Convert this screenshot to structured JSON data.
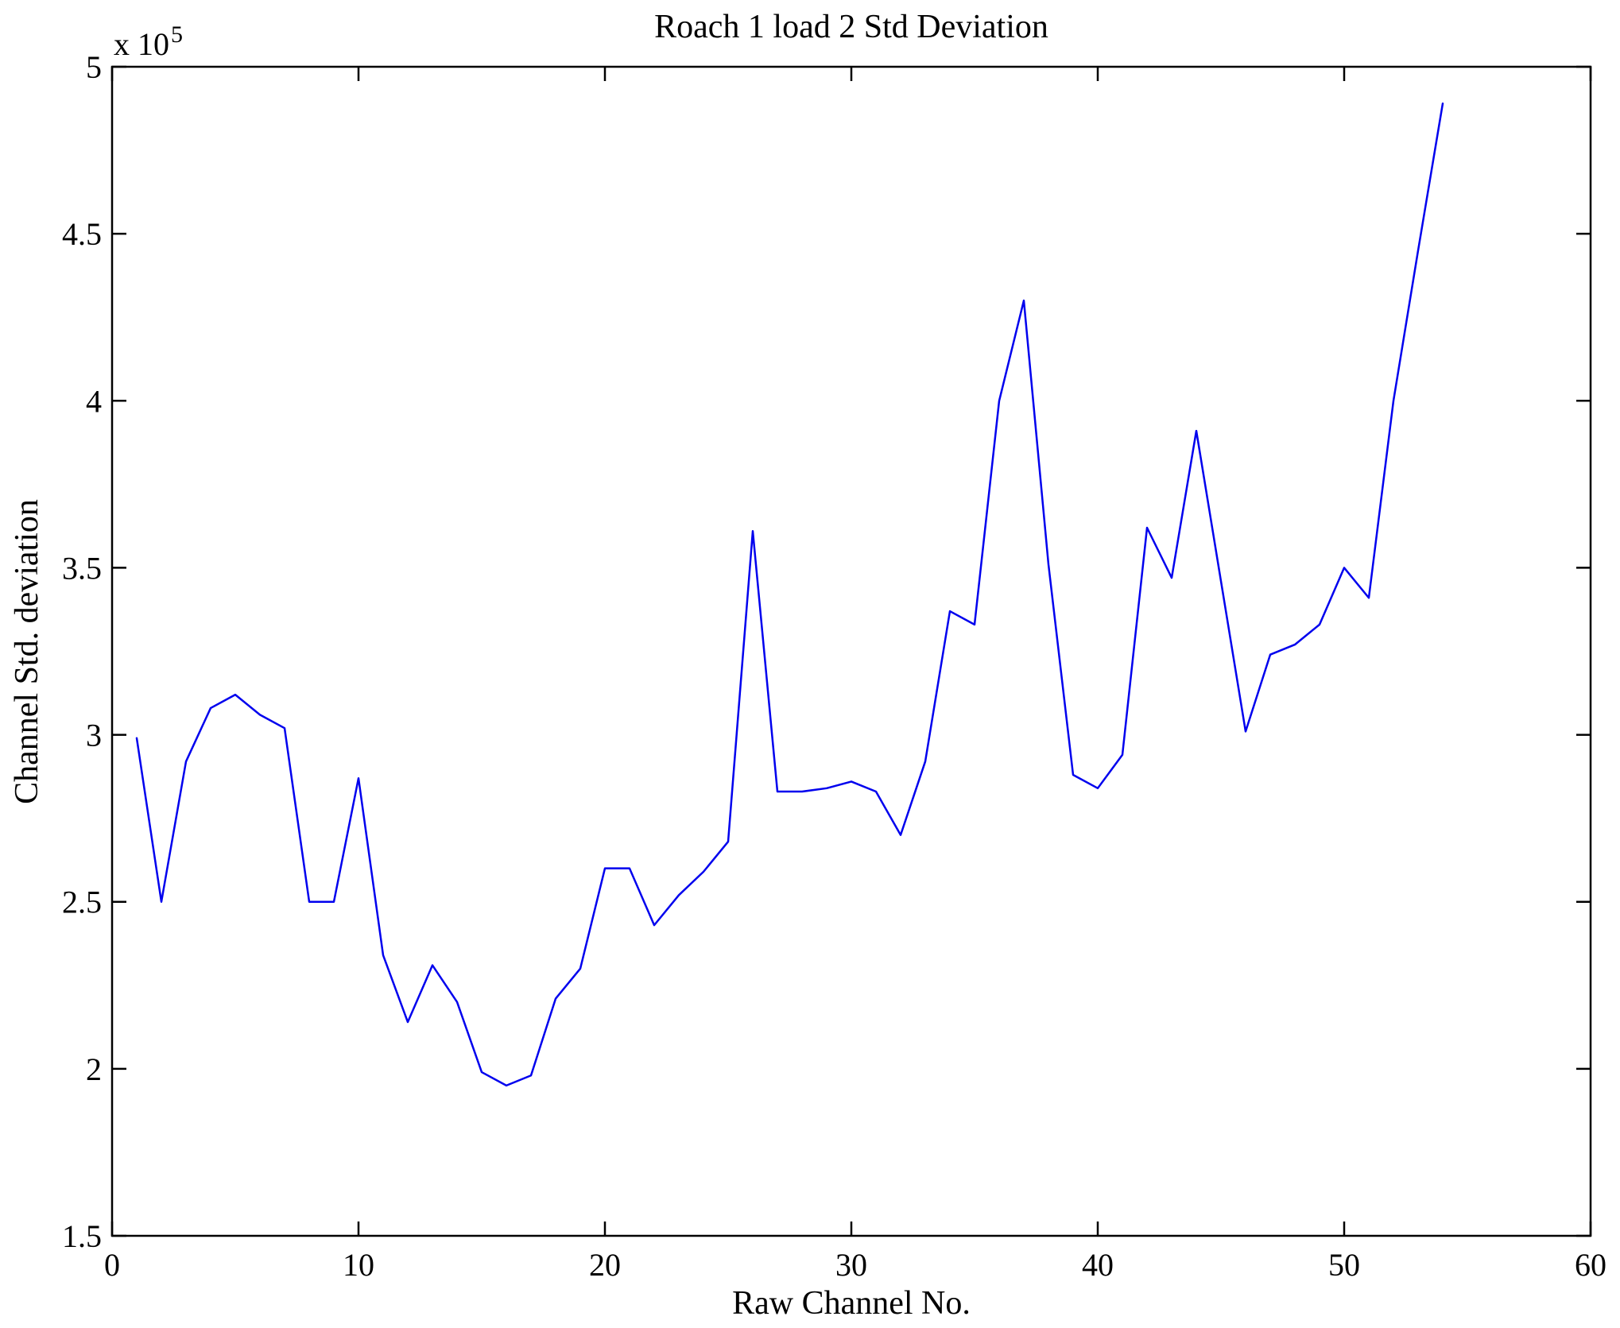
{
  "chart": {
    "title": "Roach 1 load 2 Std Deviation",
    "xlabel": "Raw Channel No.",
    "ylabel": "Channel Std. deviation",
    "y_multiplier_base": "x 10",
    "y_multiplier_exp": "5",
    "line_color": "#0000ee",
    "axis_color": "#000000",
    "background_color": "#ffffff"
  },
  "chart_data": {
    "type": "line",
    "title": "Roach 1 load 2 Std Deviation",
    "xlabel": "Raw Channel No.",
    "ylabel": "Channel Std. deviation",
    "y_unit_multiplier": 100000,
    "grid": "off",
    "legend": "none",
    "xlim": [
      0,
      60
    ],
    "ylim_e5": [
      1.5,
      5
    ],
    "x_ticks": [
      0,
      10,
      20,
      30,
      40,
      50,
      60
    ],
    "x_tick_labels": [
      "0",
      "10",
      "20",
      "30",
      "40",
      "50",
      "60"
    ],
    "y_ticks_e5": [
      1.5,
      2,
      2.5,
      3,
      3.5,
      4,
      4.5,
      5
    ],
    "y_tick_labels": [
      "1.5",
      "2",
      "2.5",
      "3",
      "3.5",
      "4",
      "4.5",
      "5"
    ],
    "x": [
      1,
      2,
      3,
      4,
      5,
      6,
      7,
      8,
      9,
      10,
      11,
      12,
      13,
      14,
      15,
      16,
      17,
      18,
      19,
      20,
      21,
      22,
      23,
      24,
      25,
      26,
      27,
      28,
      29,
      30,
      31,
      32,
      33,
      34,
      35,
      36,
      37,
      38,
      39,
      40,
      41,
      42,
      43,
      44,
      45,
      46,
      47,
      48,
      49,
      50,
      51,
      52,
      53,
      54
    ],
    "values_e5": [
      2.99,
      2.5,
      2.92,
      3.08,
      3.12,
      3.06,
      3.02,
      2.5,
      2.5,
      2.87,
      2.34,
      2.14,
      2.31,
      2.2,
      1.99,
      1.95,
      1.98,
      2.21,
      2.3,
      2.6,
      2.6,
      2.43,
      2.52,
      2.59,
      2.68,
      3.61,
      2.83,
      2.83,
      2.84,
      2.86,
      2.83,
      2.7,
      2.92,
      3.37,
      3.33,
      4.0,
      4.3,
      3.51,
      2.88,
      2.84,
      2.94,
      3.62,
      3.47,
      3.91,
      3.46,
      3.01,
      3.24,
      3.27,
      3.33,
      3.5,
      3.41,
      4.0,
      4.45,
      4.89
    ]
  }
}
